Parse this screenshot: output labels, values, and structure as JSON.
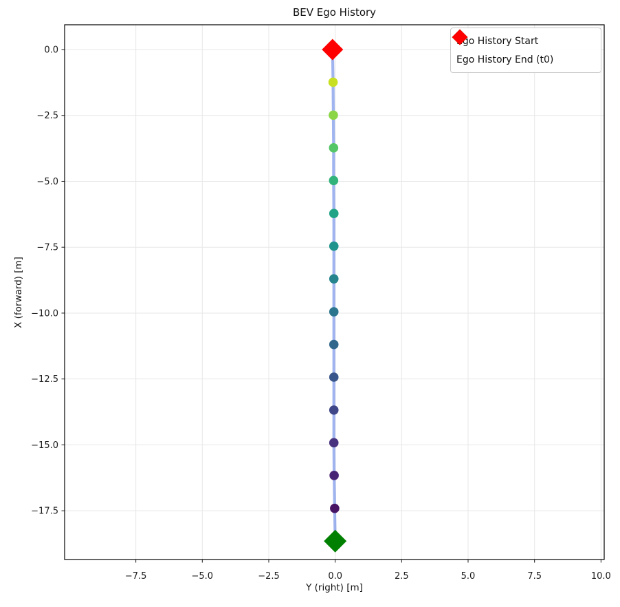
{
  "figure": {
    "title": "BEV Ego History",
    "xlabel": "Y (right) [m]",
    "ylabel": "X (forward) [m]"
  },
  "legend": {
    "items": [
      {
        "label": "Ego History Start",
        "marker": "diamond",
        "color": "#008000"
      },
      {
        "label": "Ego History End (t0)",
        "marker": "diamond",
        "color": "#ff0000"
      }
    ]
  },
  "chart_data": {
    "type": "scatter",
    "title": "BEV Ego History",
    "xlabel": "Y (right) [m]",
    "ylabel": "X (forward) [m]",
    "xlim": [
      -10.18,
      10.12
    ],
    "ylim": [
      -19.35,
      0.94
    ],
    "grid": true,
    "legend_position": "upper right",
    "xticks": {
      "values": [
        -7.5,
        -5.0,
        -2.5,
        0.0,
        2.5,
        5.0,
        7.5,
        10.0
      ],
      "labels": [
        "−7.5",
        "−5.0",
        "−2.5",
        "0.0",
        "2.5",
        "5.0",
        "7.5",
        "10.0"
      ]
    },
    "yticks": {
      "values": [
        0.0,
        -2.5,
        -5.0,
        -7.5,
        -10.0,
        -12.5,
        -15.0,
        -17.5
      ],
      "labels": [
        "0.0",
        "−2.5",
        "−5.0",
        "−7.5",
        "−10.0",
        "−12.5",
        "−15.0",
        "−17.5"
      ]
    },
    "series": [
      {
        "name": "ego-history-trajectory",
        "x_right": [
          0.0,
          -0.02,
          -0.04,
          -0.05,
          -0.05,
          -0.05,
          -0.05,
          -0.05,
          -0.05,
          -0.05,
          -0.05,
          -0.06,
          -0.06,
          -0.07,
          -0.08,
          -0.1
        ],
        "x_forward": [
          -18.65,
          -17.41,
          -16.16,
          -14.92,
          -13.68,
          -12.43,
          -11.19,
          -9.95,
          -8.7,
          -7.46,
          -6.22,
          -4.97,
          -3.73,
          -2.49,
          -1.24,
          0.0
        ],
        "dot_colors_viridis": [
          "#471365",
          "#482475",
          "#46327e",
          "#3f4788",
          "#38568b",
          "#31678d",
          "#2b758e",
          "#25848e",
          "#1f948c",
          "#20a386",
          "#32b37b",
          "#55c667",
          "#8bd646",
          "#c8e021"
        ],
        "line_color": "#4169e1",
        "line_alpha": 0.5,
        "dot_radius_px": 6.8
      }
    ],
    "start_marker": {
      "label": "Ego History Start",
      "color": "#008000",
      "x_right": 0.0,
      "x_forward": -18.65
    },
    "end_marker": {
      "label": "Ego History End (t0)",
      "color": "#ff0000",
      "x_right": -0.1,
      "x_forward": 0.0
    }
  },
  "style": {
    "grid_color": "#e7e7e7",
    "spine_color": "#000000",
    "tick_color": "#1a1a1a",
    "tick_label_color": "#1a1a1a",
    "background": "#ffffff"
  }
}
